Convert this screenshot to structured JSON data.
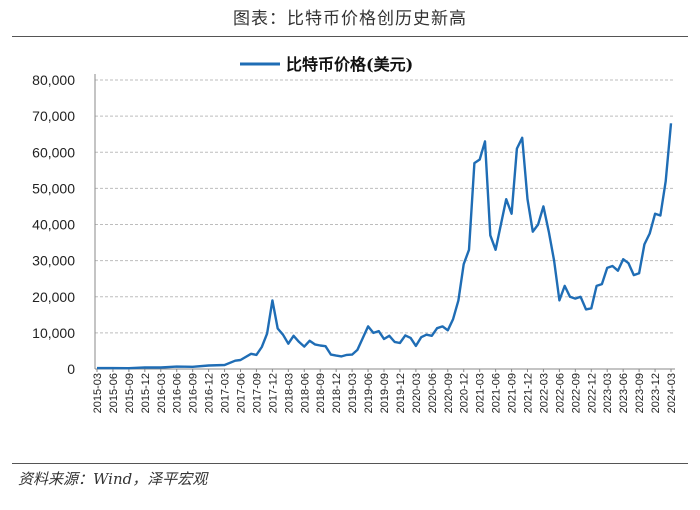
{
  "figure": {
    "title": "图表：比特币价格创历史新高",
    "source": "资料来源：Wind，泽平宏观"
  },
  "chart_data": {
    "type": "line",
    "title": "",
    "xlabel": "",
    "ylabel": "",
    "ylim": [
      0,
      80000
    ],
    "yticks": [
      "0",
      "10,000",
      "20,000",
      "30,000",
      "40,000",
      "50,000",
      "60,000",
      "70,000",
      "80,000"
    ],
    "xticks": [
      "2015-03",
      "2015-06",
      "2015-09",
      "2015-12",
      "2016-03",
      "2016-06",
      "2016-09",
      "2016-12",
      "2017-03",
      "2017-06",
      "2017-09",
      "2017-12",
      "2018-03",
      "2018-06",
      "2018-09",
      "2018-12",
      "2019-03",
      "2019-06",
      "2019-09",
      "2019-12",
      "2020-03",
      "2020-06",
      "2020-09",
      "2020-12",
      "2021-03",
      "2021-06",
      "2021-09",
      "2021-12",
      "2022-03",
      "2022-06",
      "2022-09",
      "2022-12",
      "2023-03",
      "2023-06",
      "2023-09",
      "2023-12",
      "2024-03"
    ],
    "grid": true,
    "legend": "top-center",
    "colors": {
      "series": "#1f6db5",
      "grid": "#bdbdbd"
    },
    "series": [
      {
        "name": "比特币价格(美元)",
        "x": [
          "2015-03",
          "2015-06",
          "2015-09",
          "2015-12",
          "2016-03",
          "2016-06",
          "2016-09",
          "2016-12",
          "2017-03",
          "2017-05",
          "2017-06",
          "2017-08",
          "2017-09",
          "2017-10",
          "2017-11",
          "2017-12",
          "2018-01",
          "2018-02",
          "2018-03",
          "2018-04",
          "2018-05",
          "2018-06",
          "2018-07",
          "2018-08",
          "2018-09",
          "2018-10",
          "2018-11",
          "2018-12",
          "2019-01",
          "2019-02",
          "2019-03",
          "2019-04",
          "2019-05",
          "2019-06",
          "2019-07",
          "2019-08",
          "2019-09",
          "2019-10",
          "2019-11",
          "2019-12",
          "2020-01",
          "2020-02",
          "2020-03",
          "2020-04",
          "2020-05",
          "2020-06",
          "2020-07",
          "2020-08",
          "2020-09",
          "2020-10",
          "2020-11",
          "2020-12",
          "2021-01",
          "2021-02",
          "2021-03",
          "2021-04",
          "2021-05",
          "2021-06",
          "2021-07",
          "2021-08",
          "2021-09",
          "2021-10",
          "2021-11",
          "2021-12",
          "2022-01",
          "2022-02",
          "2022-03",
          "2022-04",
          "2022-05",
          "2022-06",
          "2022-07",
          "2022-08",
          "2022-09",
          "2022-10",
          "2022-11",
          "2022-12",
          "2023-01",
          "2023-02",
          "2023-03",
          "2023-04",
          "2023-05",
          "2023-06",
          "2023-07",
          "2023-08",
          "2023-09",
          "2023-10",
          "2023-11",
          "2023-12",
          "2024-01",
          "2024-02",
          "2024-03"
        ],
        "values": [
          250,
          240,
          230,
          430,
          420,
          670,
          610,
          960,
          1100,
          2300,
          2500,
          4200,
          3900,
          6100,
          9800,
          19000,
          11200,
          9500,
          7000,
          9200,
          7500,
          6200,
          7800,
          6800,
          6500,
          6300,
          4000,
          3700,
          3500,
          3900,
          4000,
          5300,
          8500,
          11800,
          10000,
          10500,
          8300,
          9200,
          7500,
          7200,
          9300,
          8600,
          6400,
          8800,
          9500,
          9200,
          11300,
          11800,
          10700,
          13800,
          19000,
          29000,
          33000,
          57000,
          58000,
          63000,
          37000,
          33000,
          40000,
          47000,
          43000,
          61000,
          64000,
          47000,
          38000,
          40000,
          45000,
          38000,
          30000,
          19000,
          23000,
          20000,
          19500,
          20000,
          16500,
          16800,
          23000,
          23500,
          28000,
          28500,
          27200,
          30400,
          29300,
          26000,
          26500,
          34500,
          37500,
          43000,
          42500,
          52000,
          68000
        ]
      }
    ]
  }
}
